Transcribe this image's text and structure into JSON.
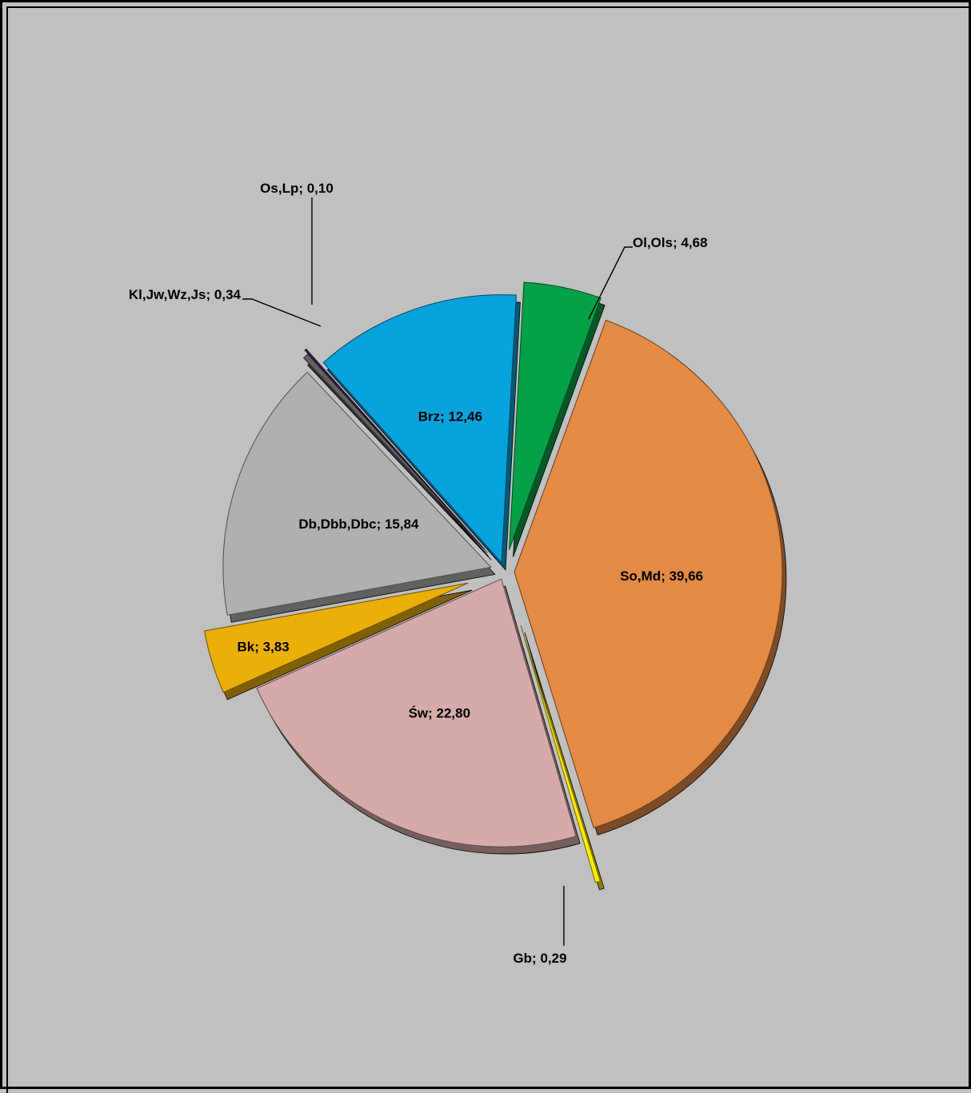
{
  "chart_data": {
    "type": "pie",
    "style": "3d-exploded",
    "legend": "none",
    "slices": [
      {
        "label": "So,Md; 39,66",
        "name": "So,Md",
        "value": 39.66,
        "color": "#e38a45"
      },
      {
        "label": "Gb; 0,29",
        "name": "Gb",
        "value": 0.29,
        "color": "#ffec00"
      },
      {
        "label": "Św; 22,80",
        "name": "Św",
        "value": 22.8,
        "color": "#d6aaab"
      },
      {
        "label": "Bk; 3,83",
        "name": "Bk",
        "value": 3.83,
        "color": "#eaaf08"
      },
      {
        "label": "Db,Dbb,Dbc; 15,84",
        "name": "Db,Dbb,Dbc",
        "value": 15.84,
        "color": "#b0b0b0"
      },
      {
        "label": "Kl,Jw,Wz,Js; 0,34",
        "name": "Kl,Jw,Wz,Js",
        "value": 0.34,
        "color": "#606060"
      },
      {
        "label": "Os,Lp; 0,10",
        "name": "Os,Lp",
        "value": 0.1,
        "color": "#3d1c63"
      },
      {
        "label": "Brz; 12,46",
        "name": "Brz",
        "value": 12.46,
        "color": "#06a2db"
      },
      {
        "label": "Ol,Ols; 4,68",
        "name": "Ol,Ols",
        "value": 4.68,
        "color": "#05a048"
      }
    ]
  }
}
